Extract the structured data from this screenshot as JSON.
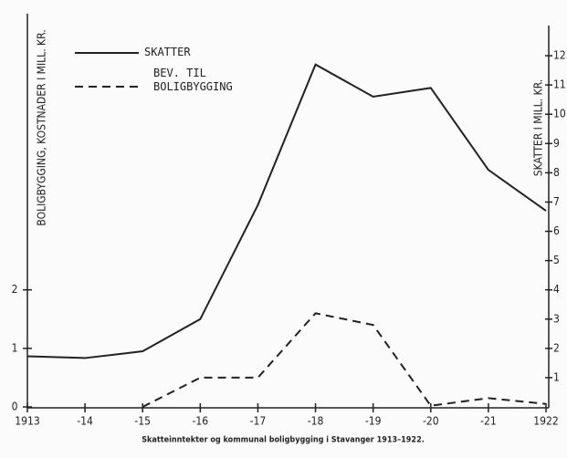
{
  "chart_data": {
    "type": "line",
    "title": "Skatteinntekter og kommunal boligbygging i Stavanger 1913–1922.",
    "ylabel": "BOLIGBYGGING, KOSTNADER I MILL. KR.",
    "y2label": "SKATTER I MILL. KR.",
    "categories": [
      "1913",
      "-14",
      "-15",
      "-16",
      "-17",
      "-18",
      "-19",
      "-20",
      "-21",
      "1922"
    ],
    "series": [
      {
        "name": "SKATTER",
        "color": "#222222",
        "dash": "solid",
        "axis": "y2",
        "values": [
          1.73,
          1.67,
          1.9,
          3.0,
          6.9,
          11.7,
          10.6,
          10.9,
          8.1,
          6.7
        ]
      },
      {
        "name": "BEV. TIL BOLIGBYGGING",
        "color": "#222222",
        "dash": "dashed",
        "values": [
          null,
          null,
          0,
          0.5,
          0.5,
          1.6,
          1.4,
          0.02,
          0.15,
          0.05
        ]
      }
    ],
    "ylim": [
      0,
      6.5
    ],
    "yticks": [
      0,
      1,
      2
    ],
    "y2lim": [
      0,
      13
    ],
    "y2ticks": [
      1,
      2,
      3,
      4,
      5,
      6,
      7,
      8,
      9,
      10,
      11,
      12
    ],
    "legend": "upper left"
  }
}
